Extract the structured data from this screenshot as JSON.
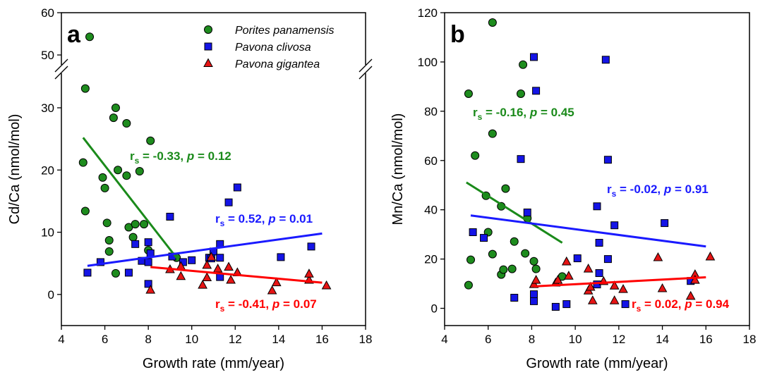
{
  "chart_data": [
    {
      "type": "scatter",
      "label": "a",
      "xlabel": "Growth rate (mm/year)",
      "ylabel": "Cd/Ca (nmol/mol)",
      "xlim": [
        4,
        18
      ],
      "xticks": [
        4,
        6,
        8,
        10,
        12,
        14,
        16,
        18
      ],
      "ylim": [
        -5,
        60
      ],
      "yticks": [
        0,
        10,
        20,
        30,
        50,
        60
      ],
      "y_break": [
        36,
        47
      ],
      "legend": "upper right",
      "series": [
        {
          "name": "Porites panamensis",
          "color": "#1e8c1e",
          "line_color": "#1a8a1a",
          "marker": "circle",
          "x": [
            5.3,
            5.1,
            5.0,
            5.1,
            6.5,
            6.4,
            6.6,
            7.0,
            7.0,
            8.1,
            7.6,
            5.9,
            6.0,
            6.1,
            6.2,
            6.2,
            6.5,
            7.1,
            7.4,
            7.8,
            7.3,
            8.0,
            9.3
          ],
          "values": [
            54.3,
            33.1,
            21.2,
            13.4,
            30.0,
            28.4,
            20.0,
            19.1,
            27.5,
            24.7,
            19.8,
            18.8,
            17.1,
            11.5,
            8.7,
            6.9,
            3.4,
            10.8,
            11.3,
            11.3,
            9.2,
            7.1,
            5.9
          ],
          "fit": {
            "x": [
              5.0,
              9.3
            ],
            "y": [
              25.2,
              5.9
            ]
          }
        },
        {
          "name": "Pavona clivosa",
          "color": "#1414e6",
          "line_color": "#1a1aff",
          "marker": "square",
          "x": [
            5.2,
            5.8,
            7.1,
            7.4,
            7.7,
            8.0,
            8.1,
            8.0,
            8.0,
            9.0,
            9.1,
            9.6,
            10.0,
            10.8,
            11.0,
            10.9,
            11.3,
            11.3,
            11.7,
            12.1,
            11.3,
            14.1,
            15.5
          ],
          "values": [
            3.5,
            5.2,
            3.5,
            8.1,
            5.4,
            8.4,
            6.6,
            5.2,
            1.7,
            12.5,
            6.1,
            5.2,
            5.5,
            5.9,
            6.9,
            5.8,
            8.1,
            5.9,
            14.8,
            17.2,
            2.8,
            6.0,
            7.7
          ],
          "fit": {
            "x": [
              5.2,
              16.0
            ],
            "y": [
              4.6,
              9.8
            ]
          }
        },
        {
          "name": "Pavona gigantea",
          "color": "#e61414",
          "line_color": "#ff0000",
          "marker": "triangle",
          "x": [
            8.1,
            9.0,
            9.5,
            9.5,
            10.5,
            10.7,
            10.7,
            10.9,
            11.2,
            11.7,
            11.8,
            12.1,
            13.7,
            13.9,
            15.4,
            15.4,
            16.2
          ],
          "values": [
            0.7,
            4.0,
            4.5,
            2.9,
            1.5,
            2.7,
            4.7,
            6.0,
            4.1,
            4.4,
            2.3,
            3.5,
            0.6,
            1.9,
            2.3,
            3.3,
            1.4
          ],
          "fit": {
            "x": [
              8.1,
              16.0
            ],
            "y": [
              4.4,
              1.9
            ]
          }
        }
      ],
      "annotations": [
        {
          "parts": [
            "r",
            "s",
            " = -0.33, ",
            "p",
            " = 0.12"
          ],
          "color": "#1a8a1a"
        },
        {
          "parts": [
            "r",
            "s",
            " = 0.52, ",
            "p",
            " = 0.01"
          ],
          "color": "#1a1aff"
        },
        {
          "parts": [
            "r",
            "s",
            " = -0.41, ",
            "p",
            " = 0.07"
          ],
          "color": "#ff0000"
        }
      ]
    },
    {
      "type": "scatter",
      "label": "b",
      "xlabel": "Growth rate (mm/year)",
      "ylabel": "Mn/Ca (nmol/mol)",
      "xlim": [
        4,
        18
      ],
      "xticks": [
        4,
        6,
        8,
        10,
        12,
        14,
        16,
        18
      ],
      "ylim": [
        -7,
        120
      ],
      "yticks": [
        0,
        20,
        40,
        60,
        80,
        100,
        120
      ],
      "series": [
        {
          "color": "#1e8c1e",
          "line_color": "#1a8a1a",
          "marker": "circle",
          "x": [
            5.1,
            5.1,
            5.2,
            5.4,
            6.2,
            6.2,
            5.9,
            6.0,
            6.2,
            6.6,
            6.6,
            6.7,
            6.8,
            7.6,
            7.5,
            7.2,
            7.1,
            7.7,
            7.8,
            8.1,
            8.2,
            9.4
          ],
          "values": [
            87.1,
            9.4,
            19.7,
            62.0,
            116.0,
            70.9,
            45.7,
            30.9,
            22.0,
            41.4,
            13.7,
            15.7,
            48.6,
            98.9,
            87.1,
            27.1,
            16.0,
            22.3,
            36.6,
            19.1,
            16.0,
            12.9
          ],
          "fit": {
            "x": [
              5.0,
              9.4
            ],
            "y": [
              51.1,
              26.6
            ]
          }
        },
        {
          "color": "#1414e6",
          "line_color": "#1a1aff",
          "marker": "square",
          "x": [
            5.3,
            5.8,
            7.2,
            7.5,
            7.8,
            8.1,
            8.2,
            8.1,
            8.1,
            9.1,
            9.6,
            10.1,
            11.0,
            11.0,
            11.1,
            11.1,
            11.4,
            11.5,
            11.5,
            11.8,
            12.3,
            14.1,
            15.3
          ],
          "values": [
            30.9,
            28.6,
            4.3,
            60.6,
            38.9,
            102.0,
            88.3,
            5.7,
            2.9,
            0.6,
            1.7,
            20.3,
            9.7,
            41.4,
            26.6,
            14.3,
            100.9,
            60.3,
            20.0,
            33.7,
            1.7,
            34.6,
            11.1
          ],
          "fit": {
            "x": [
              5.2,
              16.0
            ],
            "y": [
              37.7,
              25.1
            ]
          }
        },
        {
          "color": "#e61414",
          "line_color": "#ff0000",
          "marker": "triangle",
          "x": [
            8.1,
            8.2,
            9.1,
            9.2,
            9.6,
            9.7,
            10.6,
            10.6,
            10.7,
            10.8,
            11.3,
            11.8,
            11.8,
            12.2,
            13.8,
            14.0,
            15.3,
            15.5,
            15.5,
            16.2
          ],
          "values": [
            9.7,
            11.4,
            10.3,
            11.4,
            18.9,
            13.1,
            16.0,
            7.1,
            8.6,
            3.1,
            10.9,
            9.1,
            3.1,
            7.7,
            20.6,
            8.0,
            4.9,
            13.7,
            11.4,
            20.9
          ],
          "fit": {
            "x": [
              8.1,
              16.0
            ],
            "y": [
              8.9,
              12.6
            ]
          }
        }
      ],
      "annotations": [
        {
          "parts": [
            "r",
            "s",
            " = -0.16, ",
            "p",
            " = 0.45"
          ],
          "color": "#1a8a1a"
        },
        {
          "parts": [
            "r",
            "s",
            " = -0.02, ",
            "p",
            " = 0.91"
          ],
          "color": "#1a1aff"
        },
        {
          "parts": [
            "r",
            "s",
            " = 0.02, ",
            "p",
            " = 0.94"
          ],
          "color": "#ff0000"
        }
      ]
    }
  ]
}
